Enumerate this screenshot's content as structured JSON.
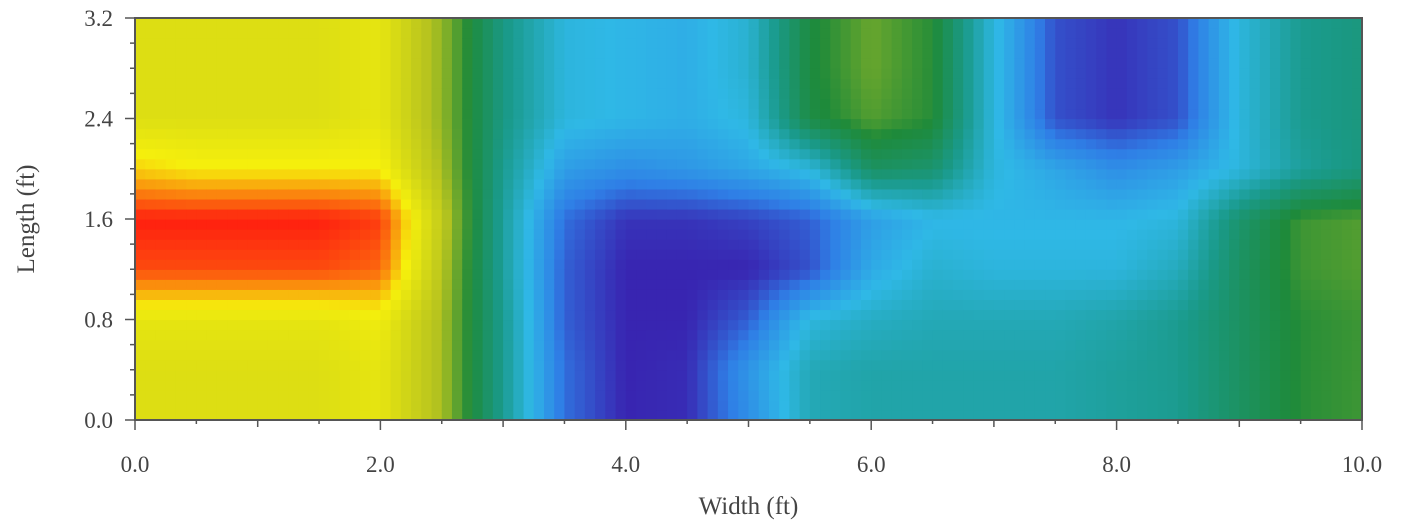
{
  "chart_data": {
    "type": "heatmap",
    "title": "",
    "xlabel": "Width (ft)",
    "ylabel": "Length (ft)",
    "xlim": [
      0,
      10
    ],
    "ylim": [
      0,
      3.2
    ],
    "x_ticks": [
      "0.0",
      "2.0",
      "4.0",
      "6.0",
      "8.0",
      "10.0"
    ],
    "y_ticks": [
      "0.0",
      "0.8",
      "1.6",
      "2.4",
      "3.2"
    ],
    "x_tick_values": [
      0,
      2,
      4,
      6,
      8,
      10
    ],
    "y_tick_values": [
      0,
      0.8,
      1.6,
      2.4,
      3.2
    ],
    "colorscale": [
      "#3a16a8",
      "#2f7fe6",
      "#2fb8e6",
      "#1a9a8a",
      "#1e8a3a",
      "#b8c41e",
      "#f6f00c",
      "#ff1f0f"
    ],
    "value_range": [
      0,
      1
    ],
    "x": [
      0.0,
      0.5,
      1.0,
      1.5,
      2.0,
      2.5,
      3.0,
      3.5,
      4.0,
      4.5,
      5.0,
      5.5,
      6.0,
      6.5,
      7.0,
      7.5,
      8.0,
      8.5,
      9.0,
      9.5,
      10.0
    ],
    "y": [
      0.0,
      0.4,
      0.8,
      1.2,
      1.6,
      2.0,
      2.4,
      2.8,
      3.2
    ],
    "z": [
      [
        0.8,
        0.8,
        0.8,
        0.8,
        0.82,
        0.7,
        0.42,
        0.12,
        0.02,
        0.03,
        0.18,
        0.36,
        0.38,
        0.38,
        0.38,
        0.38,
        0.4,
        0.42,
        0.5,
        0.58,
        0.6
      ],
      [
        0.8,
        0.8,
        0.8,
        0.8,
        0.82,
        0.7,
        0.42,
        0.12,
        0.02,
        0.03,
        0.2,
        0.36,
        0.38,
        0.38,
        0.38,
        0.38,
        0.4,
        0.42,
        0.5,
        0.58,
        0.6
      ],
      [
        0.82,
        0.82,
        0.82,
        0.82,
        0.84,
        0.7,
        0.42,
        0.1,
        0.02,
        0.02,
        0.1,
        0.3,
        0.34,
        0.36,
        0.36,
        0.36,
        0.38,
        0.42,
        0.5,
        0.58,
        0.6
      ],
      [
        0.97,
        0.97,
        0.97,
        0.97,
        0.95,
        0.72,
        0.4,
        0.1,
        0.02,
        0.02,
        0.02,
        0.08,
        0.25,
        0.32,
        0.3,
        0.3,
        0.3,
        0.35,
        0.5,
        0.6,
        0.62
      ],
      [
        1.0,
        1.0,
        1.0,
        1.0,
        0.98,
        0.74,
        0.4,
        0.12,
        0.04,
        0.04,
        0.06,
        0.1,
        0.22,
        0.28,
        0.28,
        0.28,
        0.28,
        0.3,
        0.48,
        0.6,
        0.62
      ],
      [
        0.88,
        0.86,
        0.86,
        0.86,
        0.86,
        0.7,
        0.42,
        0.22,
        0.18,
        0.2,
        0.24,
        0.3,
        0.5,
        0.48,
        0.3,
        0.24,
        0.18,
        0.22,
        0.3,
        0.4,
        0.45
      ],
      [
        0.8,
        0.8,
        0.8,
        0.8,
        0.82,
        0.68,
        0.44,
        0.3,
        0.28,
        0.26,
        0.3,
        0.55,
        0.62,
        0.58,
        0.3,
        0.08,
        0.04,
        0.08,
        0.3,
        0.42,
        0.45
      ],
      [
        0.8,
        0.8,
        0.8,
        0.8,
        0.82,
        0.68,
        0.44,
        0.3,
        0.28,
        0.26,
        0.32,
        0.56,
        0.64,
        0.58,
        0.3,
        0.08,
        0.04,
        0.08,
        0.3,
        0.42,
        0.45
      ],
      [
        0.8,
        0.8,
        0.8,
        0.8,
        0.82,
        0.68,
        0.44,
        0.3,
        0.28,
        0.26,
        0.32,
        0.56,
        0.64,
        0.58,
        0.3,
        0.08,
        0.04,
        0.08,
        0.3,
        0.42,
        0.45
      ]
    ],
    "grid": false
  }
}
